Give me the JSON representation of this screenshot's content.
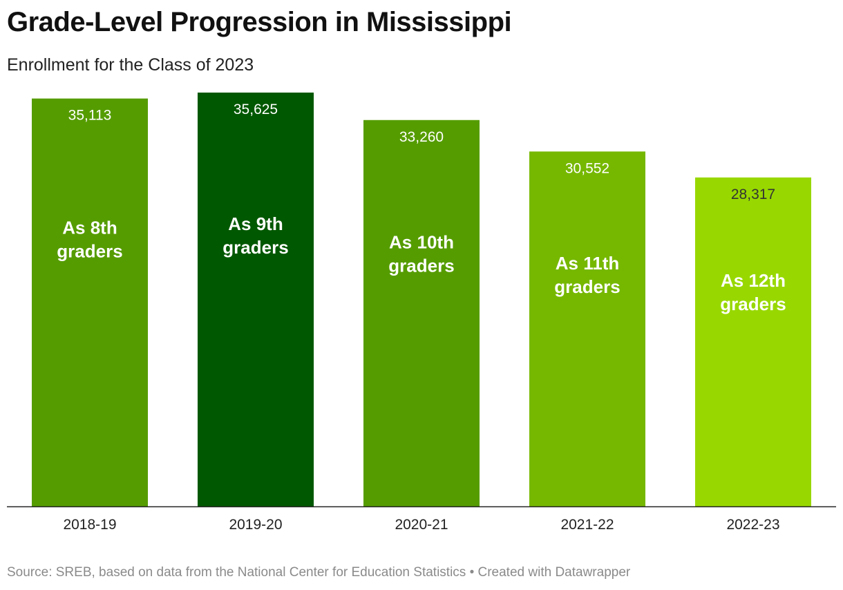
{
  "title": "Grade-Level Progression in Mississippi",
  "subtitle": "Enrollment for the Class of 2023",
  "source": "Source: SREB, based on data from the National Center for Education Statistics • Created with Datawrapper",
  "chart_data": {
    "type": "bar",
    "categories": [
      "2018-19",
      "2019-20",
      "2020-21",
      "2021-22",
      "2022-23"
    ],
    "values": [
      35113,
      35625,
      33260,
      30552,
      28317
    ],
    "value_labels": [
      "35,113",
      "35,625",
      "33,260",
      "30,552",
      "28,317"
    ],
    "bar_annotations": [
      [
        "As 8th",
        "graders"
      ],
      [
        "As 9th",
        "graders"
      ],
      [
        "As 10th",
        "graders"
      ],
      [
        "As 11th",
        "graders"
      ],
      [
        "As 12th",
        "graders"
      ]
    ],
    "colors": [
      "#559c00",
      "#005800",
      "#559c00",
      "#76b800",
      "#98d800"
    ],
    "value_label_colors": [
      "#ffffff",
      "#ffffff",
      "#ffffff",
      "#ffffff",
      "#333333"
    ],
    "ylim": [
      0,
      35625
    ],
    "grid": false,
    "legend": "none"
  }
}
